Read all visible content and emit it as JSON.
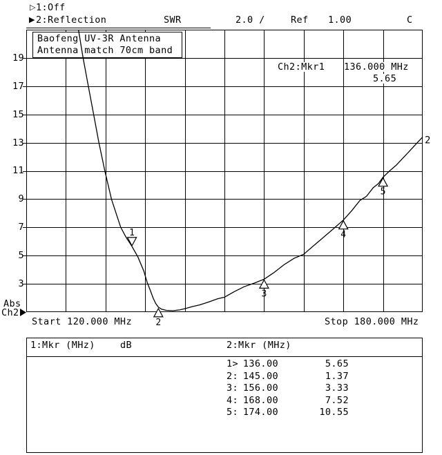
{
  "header": {
    "ch1": {
      "pointer": "▷",
      "label": "1:Off"
    },
    "ch2": {
      "pointer": "▶",
      "label": "2:Reflection",
      "format": "SWR",
      "scale": "2.0 /",
      "ref_label": "Ref",
      "ref_value": "1.00",
      "cal_flag": "C"
    }
  },
  "title_box": {
    "line1": "Baofeng UV-3R Antenna",
    "line2": "Antenna match 70cm band"
  },
  "marker_readout": {
    "channel": "Ch2:Mkr1",
    "freq": "136.000 MHz",
    "value": "5.65"
  },
  "y_axis": {
    "labels": [
      "19",
      "17",
      "15",
      "13",
      "11",
      "9",
      "7",
      "5",
      "3"
    ]
  },
  "x_axis": {
    "start": "Start 120.000 MHz",
    "stop": "Stop 180.000 MHz"
  },
  "channel_label": {
    "line1": "Abs",
    "line2": "Ch2",
    "pointer": "▶"
  },
  "trace_end_label": "2",
  "tables": {
    "left": {
      "header": "1:Mkr (MHz)",
      "unit": "dB"
    },
    "right": {
      "header": "2:Mkr (MHz)",
      "rows": [
        {
          "label": "1>",
          "freq": "136.00",
          "value": "5.65"
        },
        {
          "label": "2:",
          "freq": "145.00",
          "value": "1.37"
        },
        {
          "label": "3:",
          "freq": "156.00",
          "value": "3.33"
        },
        {
          "label": "4:",
          "freq": "168.00",
          "value": "7.52"
        },
        {
          "label": "5:",
          "freq": "174.00",
          "value": "10.55"
        }
      ]
    }
  },
  "chart_data": {
    "type": "line",
    "title": "Baofeng UV-3R Antenna",
    "subtitle": "Antenna match 70cm band",
    "measurement": "Reflection SWR",
    "x_start_mhz": 120.0,
    "x_stop_mhz": 180.0,
    "x_unit": "MHz",
    "y_ref": 1.0,
    "y_scale_per_div": 2.0,
    "ylim": [
      1,
      21
    ],
    "y_tick_values": [
      19,
      17,
      15,
      13,
      11,
      9,
      7,
      5,
      3
    ],
    "grid": {
      "x_divs": 10,
      "y_divs": 10,
      "grid_on": true
    },
    "series": [
      {
        "name": "2:Reflection SWR",
        "points": [
          [
            127.9,
            21.0
          ],
          [
            128.6,
            19.0
          ],
          [
            129.4,
            17.0
          ],
          [
            130.2,
            15.0
          ],
          [
            131.0,
            13.0
          ],
          [
            131.9,
            11.0
          ],
          [
            132.9,
            9.0
          ],
          [
            133.6,
            8.0
          ],
          [
            134.3,
            7.0
          ],
          [
            135.1,
            6.3
          ],
          [
            136.0,
            5.65
          ],
          [
            136.9,
            4.9
          ],
          [
            137.8,
            3.9
          ],
          [
            138.3,
            3.1
          ],
          [
            138.8,
            2.5
          ],
          [
            139.2,
            2.0
          ],
          [
            139.6,
            1.6
          ],
          [
            140.0,
            1.35
          ],
          [
            140.5,
            1.2
          ],
          [
            141.2,
            1.12
          ],
          [
            142.2,
            1.1
          ],
          [
            143.2,
            1.15
          ],
          [
            144.1,
            1.25
          ],
          [
            145.0,
            1.37
          ],
          [
            146.2,
            1.5
          ],
          [
            147.5,
            1.7
          ],
          [
            149.0,
            1.95
          ],
          [
            150.0,
            2.05
          ],
          [
            151.5,
            2.45
          ],
          [
            153.0,
            2.8
          ],
          [
            154.5,
            3.05
          ],
          [
            156.0,
            3.33
          ],
          [
            157.5,
            3.8
          ],
          [
            159.0,
            4.35
          ],
          [
            160.5,
            4.8
          ],
          [
            162.0,
            5.1
          ],
          [
            163.5,
            5.7
          ],
          [
            165.0,
            6.3
          ],
          [
            166.5,
            6.9
          ],
          [
            168.0,
            7.52
          ],
          [
            169.3,
            8.2
          ],
          [
            170.5,
            8.9
          ],
          [
            171.5,
            9.2
          ],
          [
            172.5,
            9.8
          ],
          [
            173.3,
            10.1
          ],
          [
            174.0,
            10.55
          ],
          [
            175.0,
            11.0
          ],
          [
            176.0,
            11.4
          ],
          [
            177.0,
            11.9
          ],
          [
            178.0,
            12.4
          ],
          [
            179.0,
            12.9
          ],
          [
            180.0,
            13.4
          ]
        ]
      }
    ],
    "markers": [
      {
        "n": "1",
        "mhz": 136.0,
        "swr": 5.65,
        "active": true,
        "dir": "down",
        "glyph_mhz": 136.0,
        "glyph_swr": 5.65
      },
      {
        "n": "2",
        "mhz": 145.0,
        "swr": 1.37,
        "active": false,
        "dir": "up",
        "glyph_mhz": 140.0,
        "glyph_swr": 1.3
      },
      {
        "n": "3",
        "mhz": 156.0,
        "swr": 3.33,
        "active": false,
        "dir": "up",
        "glyph_mhz": 156.0,
        "glyph_swr": 3.33
      },
      {
        "n": "4",
        "mhz": 168.0,
        "swr": 7.52,
        "active": false,
        "dir": "up",
        "glyph_mhz": 168.0,
        "glyph_swr": 7.52
      },
      {
        "n": "5",
        "mhz": 174.0,
        "swr": 10.55,
        "active": false,
        "dir": "up",
        "glyph_mhz": 174.0,
        "glyph_swr": 10.55
      }
    ]
  }
}
